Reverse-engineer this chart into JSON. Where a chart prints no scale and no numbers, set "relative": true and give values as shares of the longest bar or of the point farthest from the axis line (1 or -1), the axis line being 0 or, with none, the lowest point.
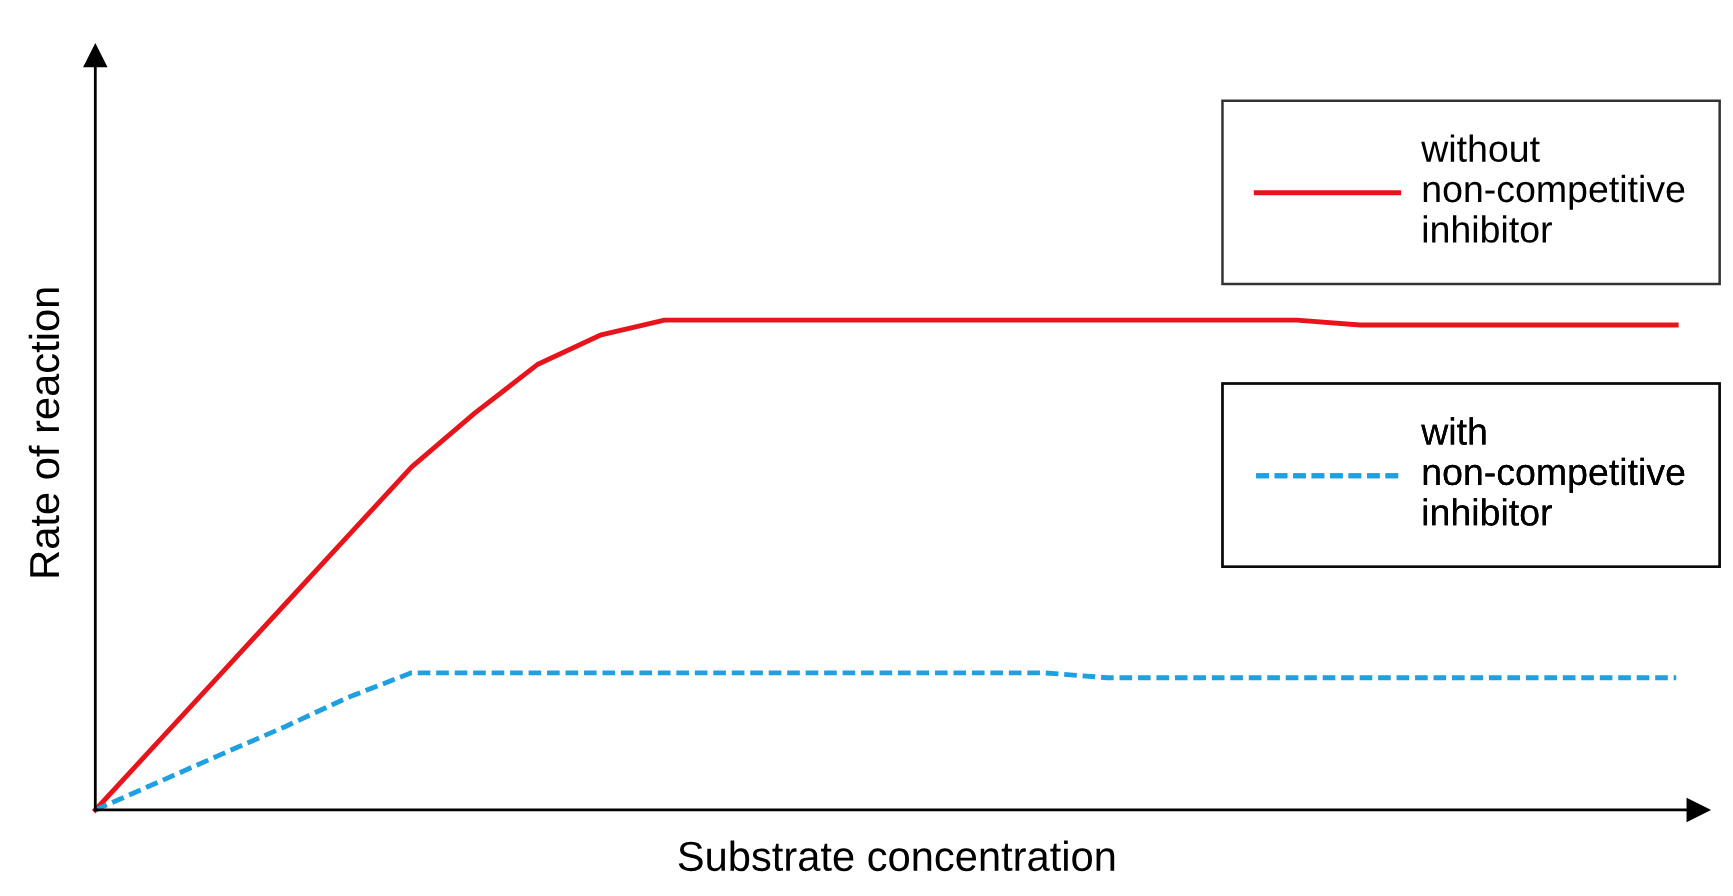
{
  "chart_data": {
    "type": "line",
    "relative": true,
    "xlabel": "Substrate concentration",
    "ylabel": "Rate of reaction",
    "legend": "right",
    "marker": "none",
    "categories": [
      null,
      null,
      null,
      null,
      null,
      null,
      null,
      null,
      null,
      null,
      null,
      null,
      null,
      null,
      null,
      null,
      null,
      null,
      null,
      null,
      null,
      null,
      null,
      null,
      null,
      null
    ],
    "series": [
      {
        "name": "without\nnon-competitive\ninhibitor",
        "color": "#e8141c",
        "line_style": "solid",
        "values": [
          0,
          0.14,
          0.28,
          0.42,
          0.56,
          0.7,
          0.81,
          0.91,
          0.97,
          1.0,
          1.0,
          1.0,
          1.0,
          1.0,
          1.0,
          1.0,
          1.0,
          1.0,
          1.0,
          1.0,
          0.99,
          0.99,
          0.99,
          0.99,
          0.99,
          0.99
        ]
      },
      {
        "name": "with\nnon-competitive\ninhibitor",
        "color": "#1fa0e0",
        "line_style": "dashed",
        "values": [
          0,
          0.057,
          0.114,
          0.17,
          0.23,
          0.28,
          0.28,
          0.28,
          0.28,
          0.28,
          0.28,
          0.28,
          0.28,
          0.28,
          0.28,
          0.28,
          0.27,
          0.27,
          0.27,
          0.27,
          0.27,
          0.27,
          0.27,
          0.27,
          0.27,
          0.27
        ]
      }
    ]
  }
}
